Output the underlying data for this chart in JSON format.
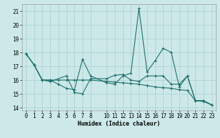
{
  "xlabel": "Humidex (Indice chaleur)",
  "bg_color": "#cce8e8",
  "line_color": "#1a6e6a",
  "grid_color": "#aacfcf",
  "xlim": [
    -0.5,
    23.5
  ],
  "ylim": [
    13.8,
    21.5
  ],
  "yticks": [
    14,
    15,
    16,
    17,
    18,
    19,
    20,
    21
  ],
  "xticks": [
    0,
    1,
    2,
    3,
    4,
    5,
    6,
    7,
    8,
    10,
    11,
    12,
    13,
    14,
    15,
    16,
    17,
    18,
    19,
    20,
    21,
    22,
    23
  ],
  "line1_x": [
    0,
    1,
    2,
    3,
    4,
    5,
    6,
    7,
    8,
    10,
    11,
    12,
    13,
    14,
    15,
    16,
    17,
    18,
    19,
    20,
    21,
    22,
    23
  ],
  "line1_y": [
    17.9,
    17.1,
    16.0,
    16.0,
    15.7,
    15.4,
    15.3,
    17.5,
    16.3,
    15.8,
    15.7,
    16.3,
    16.5,
    21.2,
    16.6,
    17.4,
    18.3,
    18.0,
    15.5,
    16.3,
    14.5,
    14.5,
    14.2
  ],
  "line2_x": [
    0,
    1,
    2,
    3,
    4,
    5,
    6,
    7,
    8,
    10,
    11,
    12,
    13,
    14,
    15,
    16,
    17,
    18,
    19,
    20,
    21,
    22,
    23
  ],
  "line2_y": [
    17.9,
    17.1,
    16.0,
    16.0,
    16.0,
    16.0,
    16.0,
    16.0,
    16.0,
    15.9,
    15.85,
    15.8,
    15.75,
    15.7,
    15.6,
    15.5,
    15.45,
    15.4,
    15.3,
    15.25,
    14.5,
    14.45,
    14.2
  ],
  "line3_x": [
    0,
    1,
    2,
    3,
    5,
    6,
    7,
    8,
    10,
    11,
    12,
    13,
    14,
    15,
    16,
    17,
    18,
    19,
    20,
    21,
    22,
    23
  ],
  "line3_y": [
    17.9,
    17.1,
    16.0,
    15.9,
    16.3,
    15.1,
    15.0,
    16.1,
    16.1,
    16.35,
    16.4,
    16.0,
    15.9,
    16.3,
    16.3,
    16.3,
    15.7,
    15.7,
    16.3,
    14.5,
    14.5,
    14.2
  ]
}
